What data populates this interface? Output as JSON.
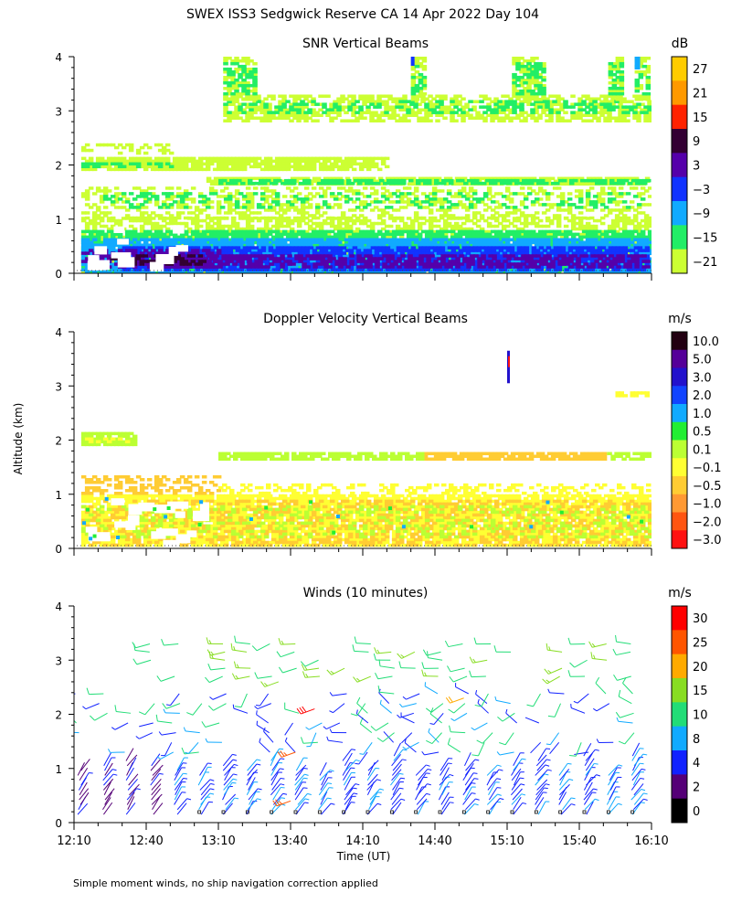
{
  "figure_title": "SWEX ISS3 Sedgwick Reserve CA  14 Apr 2022 Day 104",
  "y_axis_label": "Altitude (km)",
  "x_axis_label": "Time (UT)",
  "footnote": "Simple moment winds, no ship navigation correction applied",
  "chart_data": [
    {
      "type": "heatmap",
      "title": "SNR Vertical Beams",
      "unit": "dB",
      "ylim": [
        0,
        4
      ],
      "yticks": [
        "0",
        "1",
        "2",
        "3",
        "4"
      ],
      "colorbar": {
        "labels": [
          "27",
          "21",
          "15",
          "9",
          "3",
          "−3",
          "−9",
          "−15",
          "−21"
        ],
        "colors": [
          "#ffcc00",
          "#ff9900",
          "#ff2200",
          "#330033",
          "#5500aa",
          "#1133ff",
          "#11aaff",
          "#22ee66",
          "#ccff33"
        ]
      },
      "layers": [
        {
          "name": "boundary-layer",
          "altitude_km": [
            0.1,
            0.5
          ],
          "snr_db": "-3 to 9"
        },
        {
          "name": "mid-layer",
          "altitude_km": [
            0.5,
            1.0
          ],
          "snr_db": "-9 to -3"
        },
        {
          "name": "layer-1.7km",
          "altitude_km": [
            1.7,
            1.8
          ],
          "snr_db": "-15 to -21"
        },
        {
          "name": "layer-2km",
          "altitude_km": [
            1.9,
            2.1
          ],
          "snr_db": "-15 to -21"
        },
        {
          "name": "upper-layer",
          "altitude_km": [
            2.8,
            3.3
          ],
          "snr_db": "-21"
        }
      ]
    },
    {
      "type": "heatmap",
      "title": "Doppler Velocity Vertical Beams",
      "unit": "m/s",
      "ylim": [
        0,
        4
      ],
      "yticks": [
        "0",
        "1",
        "2",
        "3",
        "4"
      ],
      "colorbar": {
        "labels": [
          "10.0",
          "5.0",
          "3.0",
          "2.0",
          "1.0",
          "0.5",
          "0.1",
          "−0.1",
          "−0.5",
          "−1.0",
          "−2.0",
          "−3.0"
        ],
        "colors": [
          "#220011",
          "#550099",
          "#2211cc",
          "#1144ff",
          "#11aaff",
          "#22ee33",
          "#bbff33",
          "#ffff33",
          "#ffcc33",
          "#ff9933",
          "#ff5511",
          "#ff1111"
        ]
      },
      "layers": [
        {
          "name": "lower",
          "altitude_km": [
            0.1,
            1.0
          ],
          "velocity_ms": "-0.1 to -0.5"
        },
        {
          "name": "layer-1.7km",
          "altitude_km": [
            1.65,
            1.8
          ],
          "velocity_ms": "-0.5"
        },
        {
          "name": "layer-2km",
          "altitude_km": [
            1.9,
            2.1
          ],
          "velocity_ms": "0.1"
        }
      ]
    },
    {
      "type": "wind-barbs",
      "title": "Winds (10 minutes)",
      "unit": "m/s",
      "ylim": [
        0,
        4
      ],
      "yticks": [
        "0",
        "1",
        "2",
        "3",
        "4"
      ],
      "xticks": [
        "12:10",
        "12:40",
        "13:10",
        "13:40",
        "14:10",
        "14:40",
        "15:10",
        "15:40",
        "16:10"
      ],
      "xlim": [
        "12:10",
        "16:10"
      ],
      "colorbar": {
        "labels": [
          "30",
          "25",
          "20",
          "15",
          "10",
          "8",
          "4",
          "2",
          "0"
        ],
        "colors": [
          "#ff0000",
          "#ff5500",
          "#ffaa00",
          "#88dd22",
          "#22dd77",
          "#11aaff",
          "#1122ff",
          "#550077",
          "#000000"
        ]
      },
      "profiles_times": [
        "12:10",
        "12:20",
        "12:30",
        "12:40",
        "12:50",
        "13:00",
        "13:10",
        "13:20",
        "13:30",
        "13:40",
        "13:50",
        "14:00",
        "14:10",
        "14:20",
        "14:30",
        "14:40",
        "14:50",
        "15:00",
        "15:10",
        "15:20",
        "15:30",
        "15:40",
        "15:50",
        "16:00"
      ]
    }
  ]
}
